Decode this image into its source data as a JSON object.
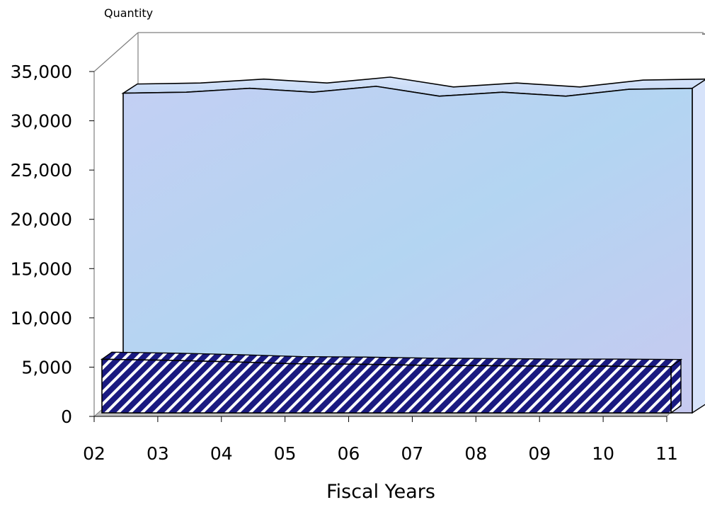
{
  "chart_data": {
    "type": "area",
    "three_d": true,
    "ylabel": "Quantity",
    "xlabel": "Fiscal Years",
    "ylim": [
      0,
      35000
    ],
    "ytick_labels": [
      "0",
      "5,000",
      "10,000",
      "15,000",
      "20,000",
      "25,000",
      "30,000",
      "35,000"
    ],
    "categories": [
      "02",
      "03",
      "04",
      "05",
      "06",
      "07",
      "08",
      "09",
      "10",
      "11"
    ],
    "series": [
      {
        "values": [
          32800,
          32900,
          33300,
          32900,
          33500,
          32500,
          32900,
          32500,
          33200,
          33300
        ],
        "color": "#b9d3f3",
        "fill_style": "textured-light-blue"
      },
      {
        "values": [
          5800,
          5700,
          5550,
          5350,
          5300,
          5200,
          5150,
          5100,
          5100,
          5050
        ],
        "color": "#1a1a80",
        "fill_style": "diagonal-stripes-navy-white"
      }
    ],
    "grid": false,
    "legend": "none"
  }
}
